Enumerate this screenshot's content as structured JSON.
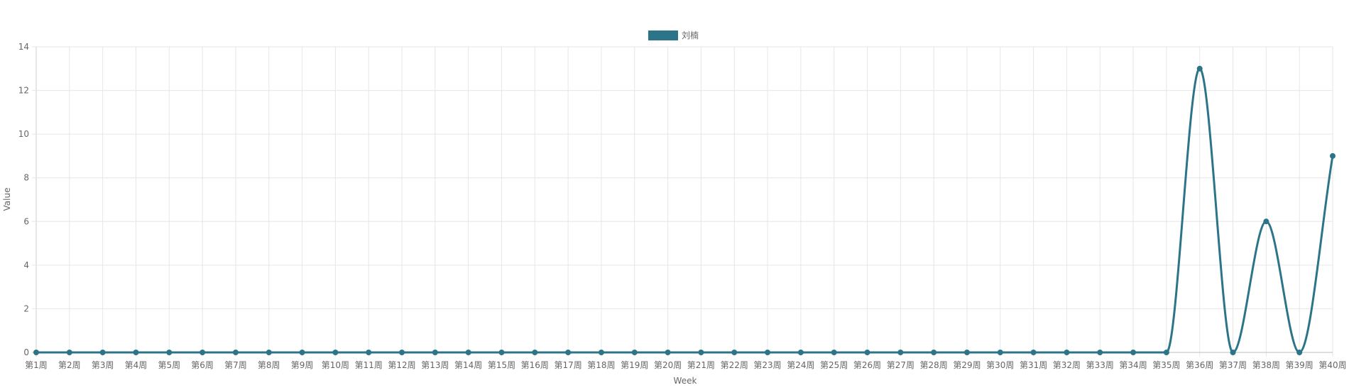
{
  "chart_data": {
    "type": "line",
    "title": "",
    "xlabel": "Week",
    "ylabel": "Value",
    "ylim": [
      0,
      14
    ],
    "yticks": [
      0,
      2,
      4,
      6,
      8,
      10,
      12,
      14
    ],
    "grid": true,
    "legend_position": "top-center",
    "categories": [
      "第1周",
      "第2周",
      "第3周",
      "第4周",
      "第5周",
      "第6周",
      "第7周",
      "第8周",
      "第9周",
      "第10周",
      "第11周",
      "第12周",
      "第13周",
      "第14周",
      "第15周",
      "第16周",
      "第17周",
      "第18周",
      "第19周",
      "第20周",
      "第21周",
      "第22周",
      "第23周",
      "第24周",
      "第25周",
      "第26周",
      "第27周",
      "第28周",
      "第29周",
      "第30周",
      "第31周",
      "第32周",
      "第33周",
      "第34周",
      "第35周",
      "第36周",
      "第37周",
      "第38周",
      "第39周",
      "第40周"
    ],
    "series": [
      {
        "name": "刘楠",
        "color": "#2c7589",
        "values": [
          0,
          0,
          0,
          0,
          0,
          0,
          0,
          0,
          0,
          0,
          0,
          0,
          0,
          0,
          0,
          0,
          0,
          0,
          0,
          0,
          0,
          0,
          0,
          0,
          0,
          0,
          0,
          0,
          0,
          0,
          0,
          0,
          0,
          0,
          0,
          13,
          0,
          6,
          0,
          9
        ]
      }
    ]
  }
}
